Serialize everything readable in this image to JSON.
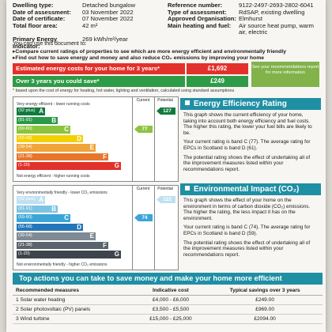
{
  "info": {
    "left": [
      {
        "key": "Dwelling type:",
        "value": "Detached bungalow"
      },
      {
        "key": "Date of assessment:",
        "value": "03 November 2022"
      },
      {
        "key": "Date of certificate:",
        "value": "07 November 2022"
      },
      {
        "key": "Total floor area:",
        "value": "42 m²"
      },
      {
        "key": "Primary Energy Indicator:",
        "value": "269 kWh/m²/year"
      }
    ],
    "right": [
      {
        "key": "Reference number:",
        "value": "9122-2497-2693-2802-6041"
      },
      {
        "key": "Type of assessment:",
        "value": "RdSAP, existing dwelling"
      },
      {
        "key": "Approved Organisation:",
        "value": "Elmhurst"
      },
      {
        "key": "Main heating and fuel:",
        "value": "Air source heat pump, warm air, electric"
      }
    ]
  },
  "intro": "You can use this document to:",
  "bullets": [
    "Compare current ratings of properties to see which are more energy efficient and environmentally friendly",
    "Find out how to save energy and money and also reduce CO₂ emissions by improving your home"
  ],
  "costs": {
    "estimated_label": "Estimated energy costs for your home for 3 years*",
    "estimated_value": "£1,692",
    "savings_label": "Over 3 years you could save*",
    "savings_value": "£249",
    "see_box": "See your recommendations report for more information",
    "note": "* based upon the cost of energy for heating, hot water, lighting and ventilation, calculated using standard assumptions",
    "colors": {
      "estimated": "#e2312b",
      "savings": "#2e9b47",
      "see": "#82b24a"
    }
  },
  "ee_chart": {
    "top_label": "Very energy efficient - lower running costs",
    "bottom_label": "Not energy efficient - higher running costs",
    "current_header": "Current",
    "potential_header": "Potential",
    "bands": [
      {
        "range": "(92 plus)",
        "letter": "A",
        "color": "#117a3d"
      },
      {
        "range": "(81-91)",
        "letter": "B",
        "color": "#2a9a48"
      },
      {
        "range": "(69-80)",
        "letter": "C",
        "color": "#8cc33f"
      },
      {
        "range": "(55-68)",
        "letter": "D",
        "color": "#f4d000"
      },
      {
        "range": "(39-54)",
        "letter": "E",
        "color": "#f0a43a"
      },
      {
        "range": "(21-38)",
        "letter": "F",
        "color": "#e8762a"
      },
      {
        "range": "(1-20)",
        "letter": "G",
        "color": "#e2312b"
      }
    ],
    "current_value": "77",
    "current_band_index": 2,
    "potential_value": "127",
    "potential_band_index": 0
  },
  "ei_chart": {
    "top_label": "Very environmentally friendly - lower CO₂ emissions",
    "bottom_label": "Not environmentally friendly - higher CO₂ emissions",
    "current_header": "Current",
    "potential_header": "Potential",
    "bands": [
      {
        "range": "(92 plus)",
        "letter": "A",
        "color": "#bfe0f0"
      },
      {
        "range": "(81-91)",
        "letter": "B",
        "color": "#7cc3e3"
      },
      {
        "range": "(69-80)",
        "letter": "C",
        "color": "#3aa6d6"
      },
      {
        "range": "(55-68)",
        "letter": "D",
        "color": "#2476b8"
      },
      {
        "range": "(39-54)",
        "letter": "E",
        "color": "#7f8a94"
      },
      {
        "range": "(21-38)",
        "letter": "F",
        "color": "#5a646e"
      },
      {
        "range": "(1-20)",
        "letter": "G",
        "color": "#3d444b"
      }
    ],
    "current_value": "74",
    "current_band_index": 2,
    "potential_value": "122",
    "potential_band_index": 0
  },
  "ee_panel": {
    "title": "Energy Efficiency Rating",
    "paragraphs": [
      "This graph shows the current efficiency of your home, taking into account both energy efficiency and fuel costs. The higher this rating, the lower your fuel bills are likely to be.",
      "Your current rating is band C (77). The average rating for EPCs in Scotland is band D (61).",
      "The potential rating shows the effect of undertaking all of the improvement measures listed within your recommendations report."
    ]
  },
  "ei_panel": {
    "title": "Environmental Impact (CO₂) Rating",
    "paragraphs": [
      "This graph shows the effect of your home on the environment in terms of carbon dioxide (CO₂) emissions. The higher the rating, the less impact it has on the environment.",
      "Your current rating is band C (74). The average rating for EPCs in Scotland is band D (59).",
      "The potential rating shows the effect of undertaking all of the improvement measures listed within your recommendations report."
    ]
  },
  "actions": {
    "title": "Top actions you can take to save money and make your home more efficient",
    "headers": [
      "Recommended measures",
      "Indicative cost",
      "Typical savings over 3 years"
    ],
    "rows": [
      [
        "1 Solar water heating",
        "£4,000 - £6,000",
        "£249.00"
      ],
      [
        "2 Solar photovoltaic (PV) panels",
        "£3,500 - £5,500",
        "£969.00"
      ],
      [
        "3 Wind turbine",
        "£15,000 - £25,000",
        "£2094.00"
      ]
    ]
  }
}
